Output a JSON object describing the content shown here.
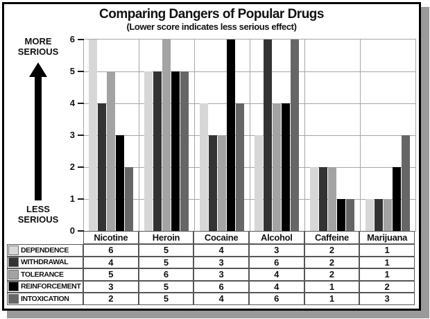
{
  "card": {
    "title": "Comparing Dangers of Popular Drugs",
    "subtitle": "(Lower score indicates less serious effect)"
  },
  "y_axis": {
    "top_label": "MORE\nSERIOUS",
    "bottom_label": "LESS\nSERIOUS",
    "ticks": [
      0,
      1,
      2,
      3,
      4,
      5,
      6
    ]
  },
  "colors": {
    "gridline": "#a6a6a6",
    "card_border": "#000000",
    "shadow": "#9a9a9a",
    "table_border": "#565656"
  },
  "chart_data": {
    "type": "bar",
    "title": "Comparing Dangers of Popular Drugs",
    "subtitle": "(Lower score indicates less serious effect)",
    "categories": [
      "Nicotine",
      "Heroin",
      "Cocaine",
      "Alcohol",
      "Caffeine",
      "Marijuana"
    ],
    "series": [
      {
        "name": "DEPENDENCE",
        "color": "#d7d7d7",
        "values": [
          6,
          5,
          4,
          3,
          2,
          1
        ]
      },
      {
        "name": "WITHDRAWAL",
        "color": "#333333",
        "values": [
          4,
          5,
          3,
          6,
          2,
          1
        ]
      },
      {
        "name": "TOLERANCE",
        "color": "#a3a3a3",
        "values": [
          5,
          6,
          3,
          4,
          2,
          1
        ]
      },
      {
        "name": "REINFORCEMENT",
        "color": "#000000",
        "values": [
          3,
          5,
          6,
          4,
          1,
          2
        ]
      },
      {
        "name": "INTOXICATION",
        "color": "#666666",
        "values": [
          2,
          5,
          4,
          6,
          1,
          3
        ]
      }
    ],
    "ylim": [
      0,
      6
    ],
    "grid": true,
    "legend_position": "table-rows-below-left"
  }
}
